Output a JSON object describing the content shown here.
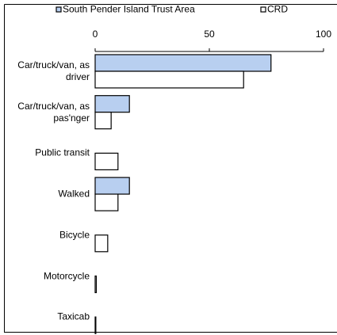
{
  "chart_data": {
    "type": "bar",
    "orientation": "horizontal",
    "categories": [
      "Car/truck/van, as driver",
      "Car/truck/van, as pas'nger",
      "Public transit",
      "Walked",
      "Bicycle",
      "Motorcycle",
      "Taxicab"
    ],
    "series": [
      {
        "name": "South Pender Island Trust Area",
        "color": "#b8cff0",
        "values": [
          77,
          15,
          0,
          15,
          0,
          0,
          0
        ]
      },
      {
        "name": "CRD",
        "color": "#ffffff",
        "values": [
          65,
          7,
          10,
          10,
          5.5,
          0.5,
          0.3
        ]
      }
    ],
    "xlim": [
      0,
      100
    ],
    "xticks": [
      0,
      50,
      100
    ],
    "legend": "top"
  }
}
